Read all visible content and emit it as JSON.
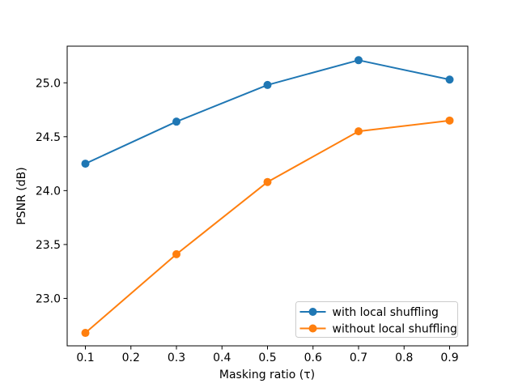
{
  "figure": {
    "background": "#ffffff",
    "spine_color": "#000000",
    "text_color": "#000000",
    "legend_border_color": "#cccccc"
  },
  "chart_data": {
    "type": "line",
    "title": "",
    "xlabel": "Masking ratio (τ)",
    "ylabel": "PSNR (dB)",
    "x": [
      0.1,
      0.3,
      0.5,
      0.7,
      0.9
    ],
    "series": [
      {
        "name": "with local shuffling",
        "color": "#1f77b4",
        "marker": "circle",
        "values": [
          24.25,
          24.64,
          24.98,
          25.21,
          25.03
        ]
      },
      {
        "name": "without local shuffling",
        "color": "#ff7f0e",
        "marker": "circle",
        "values": [
          22.68,
          23.41,
          24.08,
          24.55,
          24.65
        ]
      }
    ],
    "xlim": [
      0.06,
      0.94
    ],
    "ylim": [
      22.56,
      25.34
    ],
    "xticks": [
      0.1,
      0.2,
      0.3,
      0.4,
      0.5,
      0.6,
      0.7,
      0.8,
      0.9
    ],
    "xtick_labels": [
      "0.1",
      "0.2",
      "0.3",
      "0.4",
      "0.5",
      "0.6",
      "0.7",
      "0.8",
      "0.9"
    ],
    "yticks": [
      23.0,
      23.5,
      24.0,
      24.5,
      25.0
    ],
    "ytick_labels": [
      "23.0",
      "23.5",
      "24.0",
      "24.5",
      "25.0"
    ],
    "grid": false,
    "legend": {
      "position": "lower right"
    }
  }
}
